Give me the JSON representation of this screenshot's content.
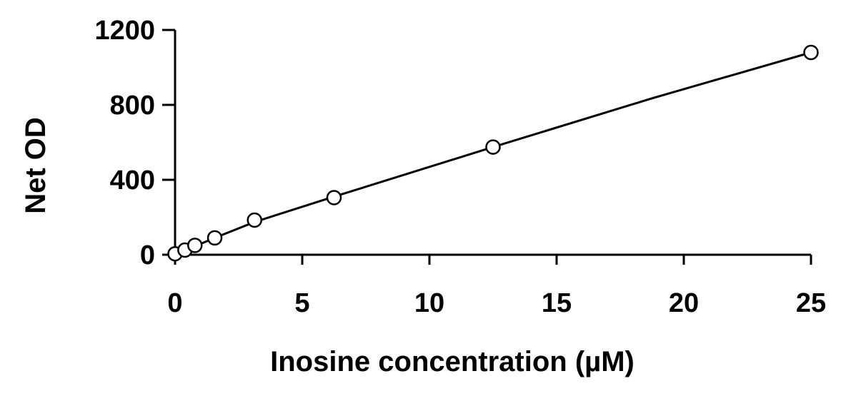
{
  "chart_data": {
    "type": "scatter",
    "title": "",
    "xlabel": "Inosine concentration (µM)",
    "ylabel": "Net OD",
    "xlim": [
      0,
      25
    ],
    "ylim": [
      0,
      1200
    ],
    "x_ticks": [
      0,
      5,
      10,
      15,
      20,
      25
    ],
    "y_ticks": [
      0,
      400,
      800,
      1200
    ],
    "x_tick_labels": [
      "0",
      "5",
      "10",
      "15",
      "20",
      "25"
    ],
    "y_tick_labels": [
      "0",
      "400",
      "800",
      "1200"
    ],
    "grid": false,
    "legend": "none",
    "series": [
      {
        "marker": "open-circle",
        "x": [
          0,
          0.39,
          0.78,
          1.56,
          3.125,
          6.25,
          12.5,
          25
        ],
        "y": [
          5,
          25,
          50,
          90,
          185,
          305,
          575,
          1080
        ]
      }
    ],
    "fit_curve": {
      "x": [
        0,
        1.56,
        3.125,
        6.25,
        12.5,
        18.75,
        25
      ],
      "y": [
        0,
        90,
        175,
        310,
        575,
        835,
        1080
      ]
    },
    "colors": {
      "axis": "#000000",
      "line": "#000000",
      "marker_stroke": "#000000",
      "marker_fill": "#ffffff"
    }
  }
}
